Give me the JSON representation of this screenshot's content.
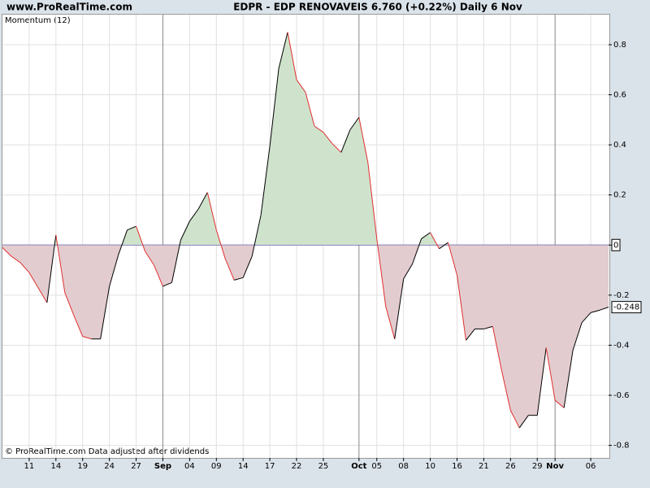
{
  "chart_data": {
    "type": "area",
    "site": "www.ProRealTime.com",
    "title": "EDPR - EDP RENOVAVEIS    6.760 (+0.22%)    Daily  6 Nov",
    "indicator": "Momentum (12)",
    "footer": "© ProRealTime.com  Data adjusted after dividends",
    "categories": [
      null,
      null,
      null,
      "11",
      null,
      null,
      "14",
      null,
      null,
      "19",
      null,
      null,
      "24",
      null,
      null,
      "27",
      null,
      null,
      "Sep",
      null,
      null,
      "04",
      null,
      null,
      "09",
      null,
      null,
      "14",
      null,
      null,
      "17",
      null,
      null,
      "22",
      null,
      null,
      "25",
      null,
      null,
      null,
      "Oct",
      null,
      "05",
      null,
      null,
      "08",
      null,
      null,
      "10",
      null,
      null,
      "16",
      null,
      null,
      "21",
      null,
      null,
      "26",
      null,
      null,
      "29",
      null,
      "Nov",
      null,
      null,
      null,
      "06",
      null,
      null
    ],
    "values": [
      -0.01,
      -0.045,
      -0.07,
      -0.11,
      -0.17,
      -0.23,
      0.04,
      -0.19,
      -0.28,
      -0.365,
      -0.375,
      -0.375,
      -0.165,
      -0.04,
      0.06,
      0.075,
      -0.025,
      -0.08,
      -0.165,
      -0.15,
      0.02,
      0.095,
      0.145,
      0.21,
      0.06,
      -0.055,
      -0.14,
      -0.13,
      -0.045,
      0.12,
      0.395,
      0.705,
      0.85,
      0.66,
      0.61,
      0.475,
      0.45,
      0.405,
      0.37,
      0.46,
      0.51,
      0.33,
      0.025,
      -0.245,
      -0.375,
      -0.135,
      -0.075,
      0.025,
      0.05,
      -0.015,
      0.01,
      -0.12,
      -0.38,
      -0.335,
      -0.335,
      -0.325,
      -0.5,
      -0.66,
      -0.73,
      -0.68,
      -0.68,
      -0.41,
      -0.62,
      -0.65,
      -0.42,
      -0.31,
      -0.27,
      -0.26,
      -0.248
    ],
    "up_color": "#000000",
    "down_color": "#e03030",
    "positive_fill": "#cfe3cc",
    "negative_fill": "#e3cccf",
    "zero_line_color": "#3030a0",
    "ylim": [
      -0.85,
      0.92
    ],
    "yticks": [
      0.8,
      0.6,
      0.4,
      0.2,
      0,
      -0.2,
      -0.4,
      -0.6,
      -0.8
    ],
    "grid": true
  }
}
